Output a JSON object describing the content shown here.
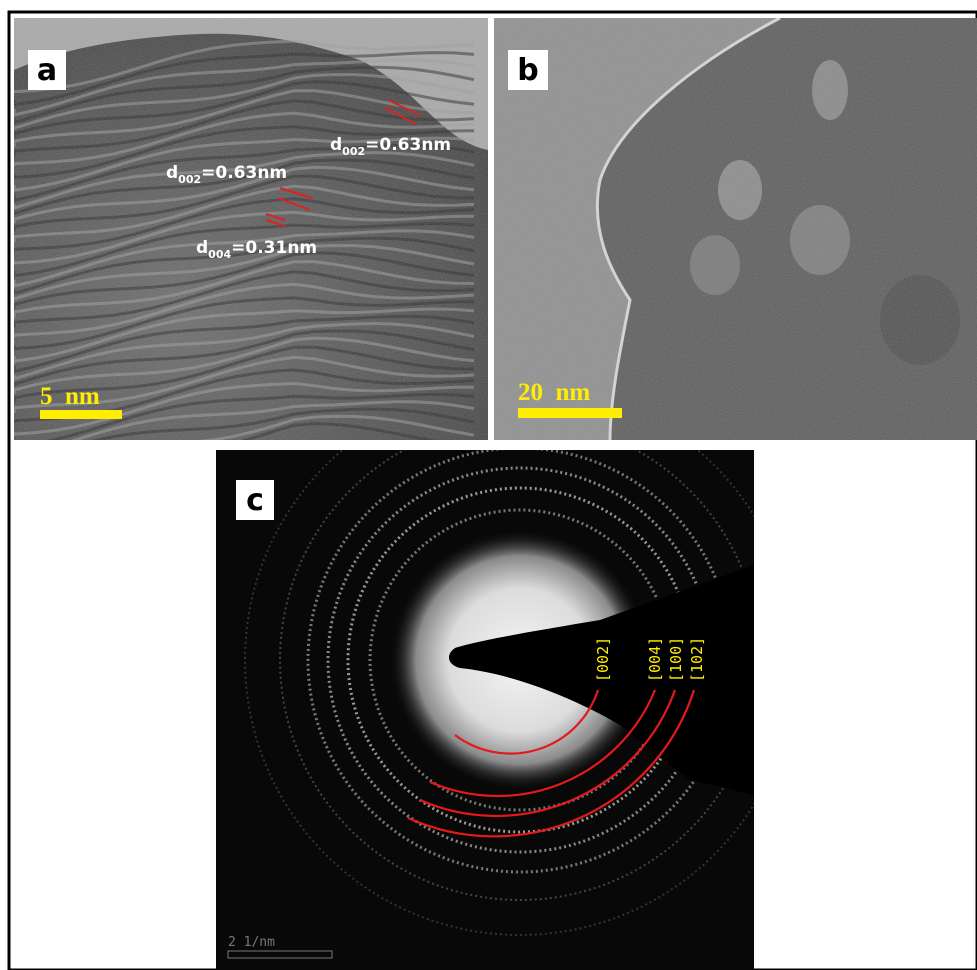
{
  "panels": [
    {
      "label": "a",
      "annotations": [
        {
          "symbol": "d",
          "subscript": "002",
          "text": "=0.63nm"
        },
        {
          "symbol": "d",
          "subscript": "002",
          "text": "=0.63nm"
        },
        {
          "symbol": "d",
          "subscript": "004",
          "text": "=0.31nm"
        }
      ],
      "scale_bar": "5  nm"
    },
    {
      "label": "b",
      "scale_bar": "20  nm"
    },
    {
      "label": "c",
      "ring_labels": [
        "[002]",
        "[004]",
        "[100]",
        "[102]"
      ],
      "scale_bar": "2 1/nm"
    }
  ]
}
